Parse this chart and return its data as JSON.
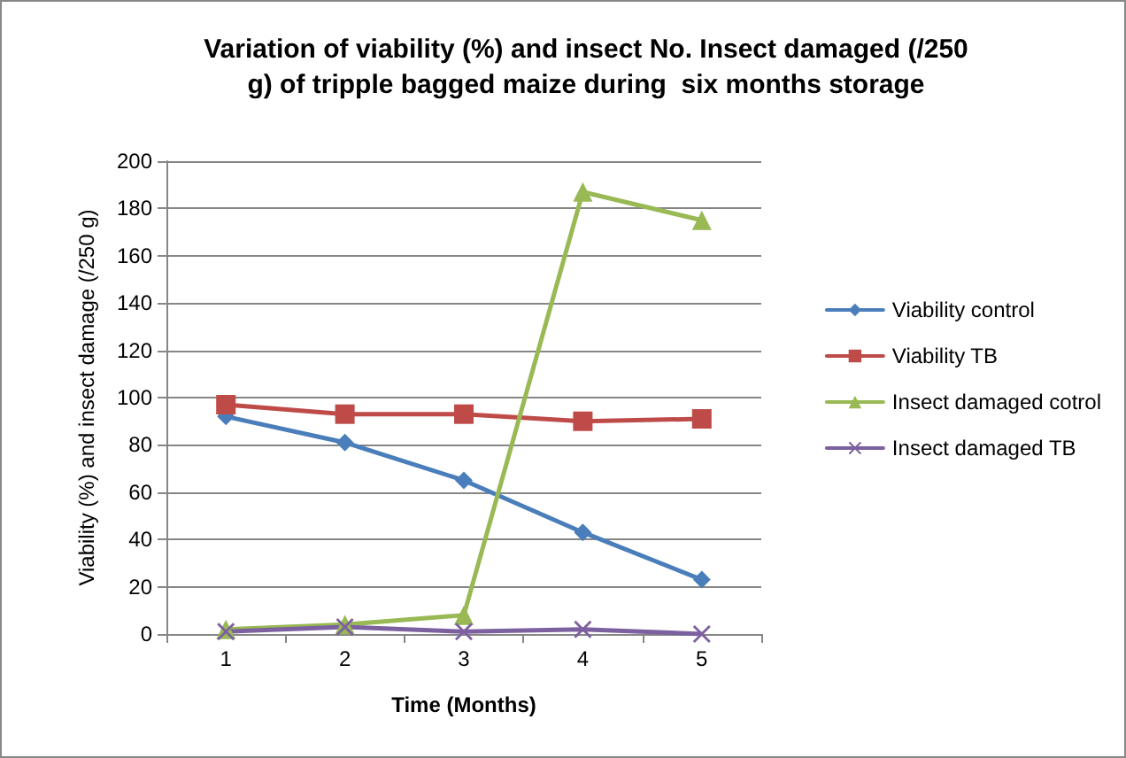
{
  "chart_data": {
    "type": "line",
    "title": "Variation of viability (%) and insect No. Insect damaged (/250\ng) of tripple bagged maize during  six months storage",
    "xlabel": "Time (Months)",
    "ylabel": "Viability (%) and insect damage (/250 g)",
    "categories": [
      "1",
      "2",
      "3",
      "4",
      "5"
    ],
    "series": [
      {
        "name": "Viability control",
        "color": "#4a7ebb",
        "marker": "diamond",
        "values": [
          92,
          81,
          65,
          43,
          23
        ]
      },
      {
        "name": "Viability TB",
        "color": "#be4b48",
        "marker": "square",
        "values": [
          97,
          93,
          93,
          90,
          91
        ]
      },
      {
        "name": "Insect damaged cotrol",
        "color": "#98b954",
        "marker": "triangle",
        "values": [
          2,
          4,
          8,
          187,
          175
        ]
      },
      {
        "name": "Insect damaged TB",
        "color": "#7d60a0",
        "marker": "cross",
        "values": [
          1,
          3,
          1,
          2,
          0
        ]
      }
    ],
    "ylim": [
      0,
      200
    ],
    "yticks": [
      0,
      20,
      40,
      60,
      80,
      100,
      120,
      140,
      160,
      180,
      200
    ],
    "grid": "y",
    "legend": "right",
    "line_style": "solid"
  }
}
